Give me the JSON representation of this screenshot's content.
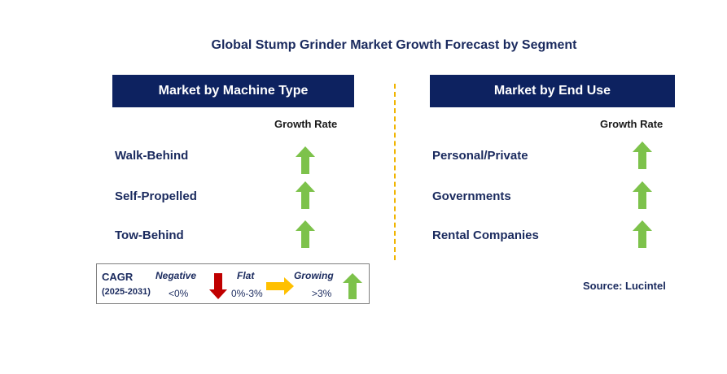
{
  "title": "Global Stump Grinder Market Growth Forecast by Segment",
  "left_panel": {
    "header": "Market by Machine Type",
    "growth_label": "Growth Rate",
    "items": [
      {
        "label": "Walk-Behind",
        "trend": "growing"
      },
      {
        "label": "Self-Propelled",
        "trend": "growing"
      },
      {
        "label": "Tow-Behind",
        "trend": "growing"
      }
    ]
  },
  "right_panel": {
    "header": "Market by End Use",
    "growth_label": "Growth Rate",
    "items": [
      {
        "label": "Personal/Private",
        "trend": "growing"
      },
      {
        "label": "Governments",
        "trend": "growing"
      },
      {
        "label": "Rental Companies",
        "trend": "growing"
      }
    ]
  },
  "legend": {
    "cagr_label": "CAGR",
    "period": "(2025-2031)",
    "negative_label": "Negative",
    "negative_range": "<0%",
    "flat_label": "Flat",
    "flat_range": "0%-3%",
    "growing_label": "Growing",
    "growing_range": ">3%"
  },
  "source": "Source: Lucintel",
  "colors": {
    "header_bg": "#0d2260",
    "growing_arrow": "#7dc24b",
    "negative_arrow": "#c00000",
    "flat_arrow": "#ffc000",
    "divider": "#f0b400"
  },
  "icons": {
    "growing": "up-arrow-icon",
    "negative": "down-arrow-icon",
    "flat": "right-arrow-icon"
  }
}
